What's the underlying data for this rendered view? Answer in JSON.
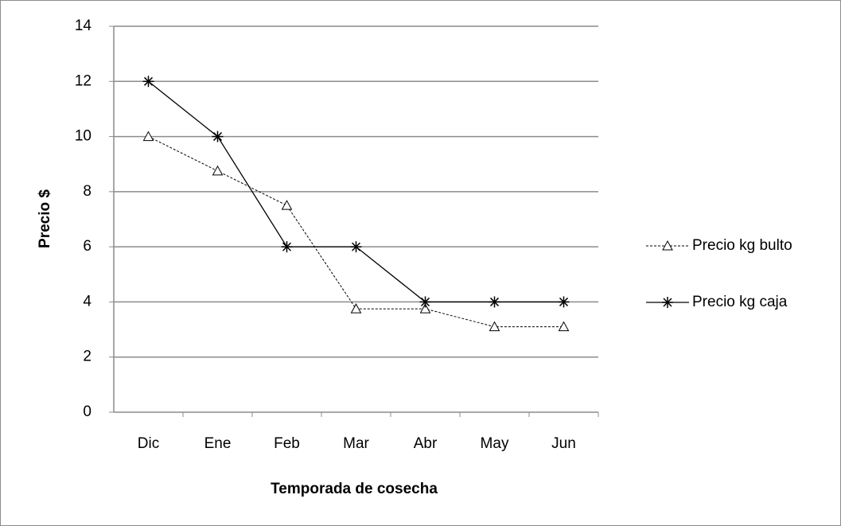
{
  "chart_data": {
    "type": "line",
    "y_label": "Precio  $",
    "x_label": "Temporada de cosecha",
    "categories": [
      "Dic",
      "Ene",
      "Feb",
      "Mar",
      "Abr",
      "May",
      "Jun"
    ],
    "series": [
      {
        "name": "Precio kg bulto",
        "color": "#000000",
        "dash": true,
        "marker": "triangle",
        "values": [
          10,
          8.75,
          7.5,
          3.75,
          3.75,
          3.1,
          3.1
        ]
      },
      {
        "name": "Precio kg caja",
        "color": "#000000",
        "dash": false,
        "marker": "asterisk",
        "values": [
          12,
          10,
          6,
          6,
          4,
          4,
          4
        ]
      }
    ],
    "ylim": [
      0,
      14
    ],
    "yticks": [
      0,
      2,
      4,
      6,
      8,
      10,
      12,
      14
    ],
    "grid": true,
    "legend": "right"
  }
}
